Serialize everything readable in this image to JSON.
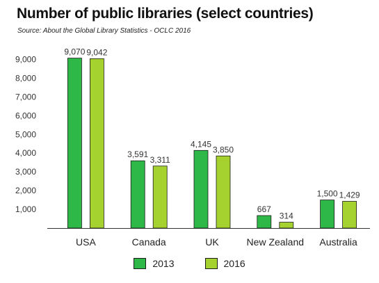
{
  "chart_data": {
    "type": "bar",
    "title": "Number of public libraries (select countries)",
    "subtitle": "Source: About the Global Library Statistics - OCLC 2016",
    "categories": [
      "USA",
      "Canada",
      "UK",
      "New Zealand",
      "Australia"
    ],
    "series": [
      {
        "name": "2013",
        "color": "#2eb847",
        "values": [
          9070,
          3591,
          4145,
          667,
          1500
        ],
        "labels": [
          "9,070",
          "3,591",
          "4,145",
          "667",
          "1,500"
        ]
      },
      {
        "name": "2016",
        "color": "#a6d22f",
        "values": [
          9042,
          3311,
          3850,
          314,
          1429
        ],
        "labels": [
          "9,042",
          "3,311",
          "3,850",
          "314",
          "1,429"
        ]
      }
    ],
    "yticks": [
      1000,
      2000,
      3000,
      4000,
      5000,
      6000,
      7000,
      8000,
      9000
    ],
    "ytick_labels": [
      "1,000",
      "2,000",
      "3,000",
      "4,000",
      "5,000",
      "6,000",
      "7,000",
      "8,000",
      "9,000"
    ],
    "ylim": [
      0,
      9500
    ],
    "xlabel": "",
    "ylabel": "",
    "grid": false,
    "legend_position": "bottom"
  }
}
